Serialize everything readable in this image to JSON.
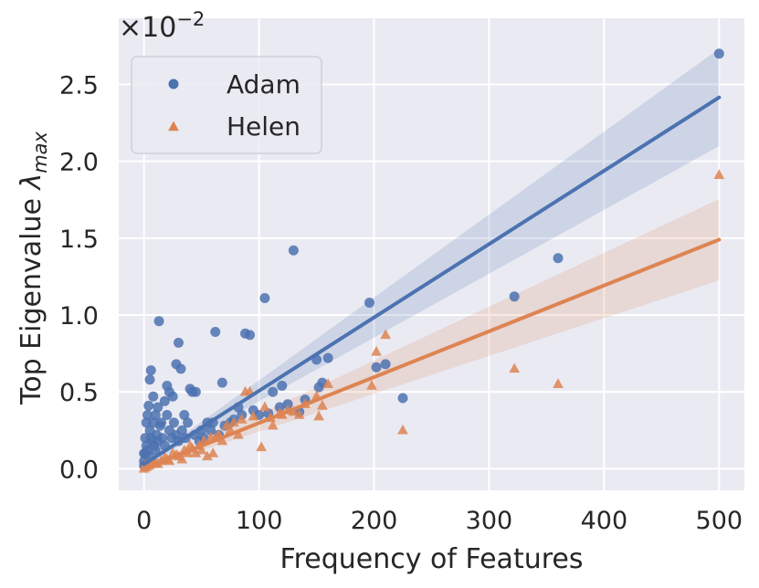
{
  "chart_data": {
    "type": "scatter",
    "xlabel": "Frequency of Features",
    "ylabel_main": "Top Eigenvalue ",
    "ylabel_symbol": "λ",
    "ylabel_sub": "max",
    "y_scale_base": "×10",
    "y_scale_exp": "−2",
    "xlim": [
      -22,
      522
    ],
    "ylim": [
      -0.14,
      2.93
    ],
    "xticks": [
      0,
      100,
      200,
      300,
      400,
      500
    ],
    "yticks": [
      0.0,
      0.5,
      1.0,
      1.5,
      2.0,
      2.5
    ],
    "x_tick_labels": [
      "0",
      "100",
      "200",
      "300",
      "400",
      "500"
    ],
    "y_tick_labels": [
      "0.0",
      "0.5",
      "1.0",
      "1.5",
      "2.0",
      "2.5"
    ],
    "grid": true,
    "legend_position": "top-left",
    "colors": {
      "Adam": "#4c72b0",
      "Helen": "#dd8452",
      "background": "#eaeaf2"
    },
    "series": [
      {
        "name": "Adam",
        "marker": "circle",
        "fit": {
          "intercept": 0.03,
          "slope": 0.00477,
          "x_range": [
            0,
            500
          ]
        },
        "points": [
          [
            500,
            2.7
          ],
          [
            360,
            1.37
          ],
          [
            322,
            1.12
          ],
          [
            225,
            0.46
          ],
          [
            210,
            0.68
          ],
          [
            202,
            0.66
          ],
          [
            196,
            1.08
          ],
          [
            160,
            0.72
          ],
          [
            155,
            0.56
          ],
          [
            152,
            0.53
          ],
          [
            150,
            0.71
          ],
          [
            135,
            0.37
          ],
          [
            130,
            1.42
          ],
          [
            120,
            0.54
          ],
          [
            112,
            0.5
          ],
          [
            105,
            1.11
          ],
          [
            100,
            0.35
          ],
          [
            92,
            0.87
          ],
          [
            88,
            0.88
          ],
          [
            82,
            0.4
          ],
          [
            75,
            0.3
          ],
          [
            68,
            0.56
          ],
          [
            62,
            0.89
          ],
          [
            60,
            0.3
          ],
          [
            55,
            0.3
          ],
          [
            50,
            0.25
          ],
          [
            45,
            0.5
          ],
          [
            42,
            0.5
          ],
          [
            40,
            0.52
          ],
          [
            38,
            0.3
          ],
          [
            35,
            0.35
          ],
          [
            32,
            0.65
          ],
          [
            30,
            0.82
          ],
          [
            28,
            0.68
          ],
          [
            25,
            0.47
          ],
          [
            22,
            0.5
          ],
          [
            20,
            0.54
          ],
          [
            18,
            0.44
          ],
          [
            15,
            0.3
          ],
          [
            13,
            0.96
          ],
          [
            12,
            0.4
          ],
          [
            10,
            0.35
          ],
          [
            8,
            0.47
          ],
          [
            6,
            0.64
          ],
          [
            5,
            0.58
          ],
          [
            4,
            0.41
          ],
          [
            3,
            0.35
          ],
          [
            2,
            0.3
          ],
          [
            1,
            0.2
          ],
          [
            0,
            0.1
          ],
          [
            0,
            0.02
          ],
          [
            0,
            0.05
          ],
          [
            1,
            0.1
          ],
          [
            2,
            0.15
          ],
          [
            3,
            0.12
          ],
          [
            4,
            0.08
          ],
          [
            5,
            0.25
          ],
          [
            6,
            0.2
          ],
          [
            7,
            0.18
          ],
          [
            8,
            0.3
          ],
          [
            9,
            0.15
          ],
          [
            10,
            0.12
          ],
          [
            11,
            0.22
          ],
          [
            12,
            0.18
          ],
          [
            14,
            0.28
          ],
          [
            16,
            0.2
          ],
          [
            18,
            0.15
          ],
          [
            20,
            0.35
          ],
          [
            22,
            0.25
          ],
          [
            24,
            0.2
          ],
          [
            26,
            0.3
          ],
          [
            28,
            0.22
          ],
          [
            30,
            0.18
          ],
          [
            33,
            0.25
          ],
          [
            36,
            0.2
          ],
          [
            44,
            0.22
          ],
          [
            48,
            0.18
          ],
          [
            52,
            0.2
          ],
          [
            58,
            0.25
          ],
          [
            65,
            0.22
          ],
          [
            70,
            0.28
          ],
          [
            78,
            0.32
          ],
          [
            85,
            0.35
          ],
          [
            95,
            0.38
          ],
          [
            108,
            0.36
          ],
          [
            118,
            0.4
          ],
          [
            125,
            0.42
          ],
          [
            140,
            0.45
          ]
        ]
      },
      {
        "name": "Helen",
        "marker": "triangle",
        "fit": {
          "intercept": 0.0,
          "slope": 0.00298,
          "x_range": [
            0,
            500
          ]
        },
        "points": [
          [
            500,
            1.91
          ],
          [
            360,
            0.55
          ],
          [
            322,
            0.65
          ],
          [
            225,
            0.25
          ],
          [
            210,
            0.87
          ],
          [
            202,
            0.76
          ],
          [
            198,
            0.54
          ],
          [
            160,
            0.55
          ],
          [
            155,
            0.41
          ],
          [
            152,
            0.34
          ],
          [
            150,
            0.47
          ],
          [
            135,
            0.35
          ],
          [
            130,
            0.37
          ],
          [
            120,
            0.35
          ],
          [
            112,
            0.28
          ],
          [
            105,
            0.4
          ],
          [
            102,
            0.14
          ],
          [
            92,
            0.5
          ],
          [
            88,
            0.5
          ],
          [
            82,
            0.22
          ],
          [
            75,
            0.25
          ],
          [
            68,
            0.18
          ],
          [
            62,
            0.2
          ],
          [
            60,
            0.1
          ],
          [
            55,
            0.08
          ],
          [
            50,
            0.12
          ],
          [
            45,
            0.1
          ],
          [
            40,
            0.15
          ],
          [
            35,
            0.12
          ],
          [
            30,
            0.08
          ],
          [
            25,
            0.1
          ],
          [
            20,
            0.06
          ],
          [
            15,
            0.05
          ],
          [
            10,
            0.04
          ],
          [
            5,
            0.03
          ],
          [
            0,
            0.0
          ],
          [
            1,
            0.02
          ],
          [
            2,
            0.01
          ],
          [
            3,
            0.03
          ],
          [
            4,
            0.02
          ],
          [
            6,
            0.04
          ],
          [
            8,
            0.05
          ],
          [
            12,
            0.03
          ],
          [
            18,
            0.07
          ],
          [
            22,
            0.05
          ],
          [
            28,
            0.09
          ],
          [
            33,
            0.06
          ],
          [
            38,
            0.1
          ],
          [
            42,
            0.13
          ],
          [
            48,
            0.15
          ],
          [
            52,
            0.18
          ],
          [
            58,
            0.2
          ],
          [
            65,
            0.22
          ],
          [
            72,
            0.28
          ],
          [
            78,
            0.3
          ],
          [
            85,
            0.32
          ],
          [
            95,
            0.34
          ],
          [
            110,
            0.33
          ],
          [
            118,
            0.36
          ],
          [
            125,
            0.38
          ],
          [
            140,
            0.42
          ]
        ]
      }
    ],
    "legend": [
      {
        "name": "Adam",
        "label": "Adam"
      },
      {
        "name": "Helen",
        "label": "Helen"
      }
    ]
  }
}
